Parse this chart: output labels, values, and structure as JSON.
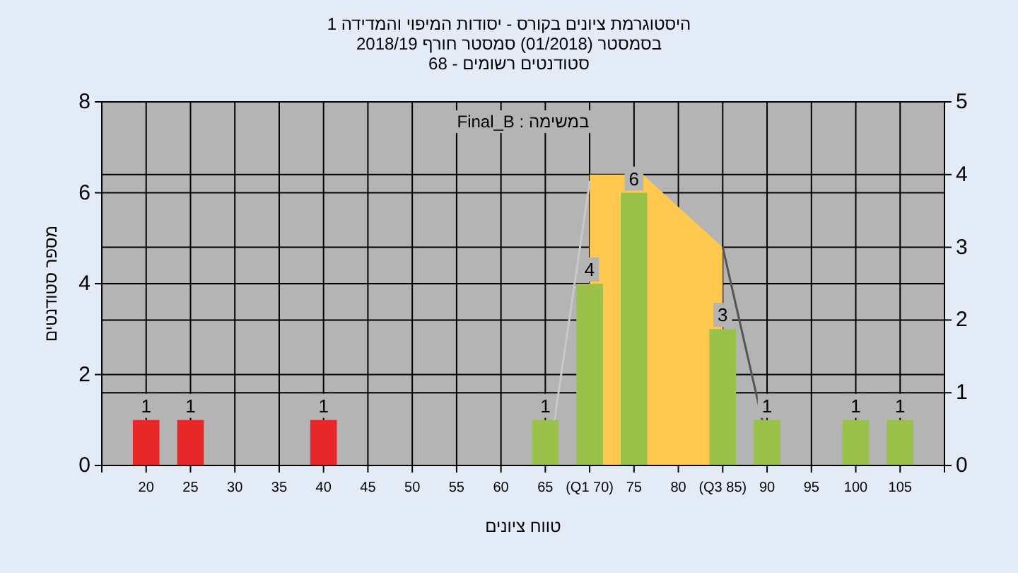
{
  "chart_data": {
    "type": "bar",
    "title": "היסטוגרמת ציונים בקורס - יסודות המיפוי והמדידה 1",
    "subtitle": "בסמסטר  (01/2018)  סמסטר חורף 2018/19",
    "xlabel": "טווח ציונים",
    "ylabel": "מספר סטודנטים",
    "annotations": [
      "סטודנטים רשומים - 68",
      "במשימה : Final_B"
    ],
    "xlim": [
      15,
      110
    ],
    "xticks": [
      {
        "value": 15,
        "label": null
      },
      20,
      25,
      30,
      35,
      40,
      45,
      50,
      55,
      60,
      65,
      {
        "value": 70,
        "label": "(Q1 70)"
      },
      75,
      80,
      {
        "value": 85,
        "label": "(Q3 85)"
      },
      90,
      95,
      100,
      105,
      {
        "value": 110,
        "label": null
      }
    ],
    "ylim": [
      0,
      8
    ],
    "yticks": [
      0,
      2,
      4,
      6,
      8
    ],
    "y2lim": [
      0,
      5
    ],
    "y2ticks": [
      0,
      1,
      2,
      3,
      4,
      5
    ],
    "grid": true,
    "series": [
      {
        "type": "area",
        "axis": "y2",
        "color": "#ffc94f",
        "x": [
          70,
          70,
          76,
          85,
          85
        ],
        "values": [
          0,
          4,
          4,
          3,
          0
        ]
      },
      {
        "type": "line",
        "axis": "y2",
        "color": "#c8c8c8",
        "x": [
          66,
          70
        ],
        "values": [
          0.6,
          3.9
        ]
      },
      {
        "type": "line",
        "axis": "y2",
        "color": "#555555",
        "x": [
          85,
          89.5
        ],
        "values": [
          3,
          0.6
        ]
      },
      {
        "type": "bar",
        "x": [
          20,
          25,
          40,
          65,
          70,
          75,
          85,
          90,
          100,
          105
        ],
        "values": [
          1,
          1,
          1,
          1,
          4,
          6,
          3,
          1,
          1,
          1
        ],
        "value_labels": [
          "1",
          "1",
          "1",
          "1",
          "4",
          "6",
          "3",
          "1",
          "1",
          "1"
        ],
        "colors": [
          "#e8272b",
          "#e8272b",
          "#e8272b",
          "#9ac24a",
          "#9ac24a",
          "#9ac24a",
          "#9ac24a",
          "#9ac24a",
          "#9ac24a",
          "#9ac24a"
        ]
      }
    ]
  }
}
